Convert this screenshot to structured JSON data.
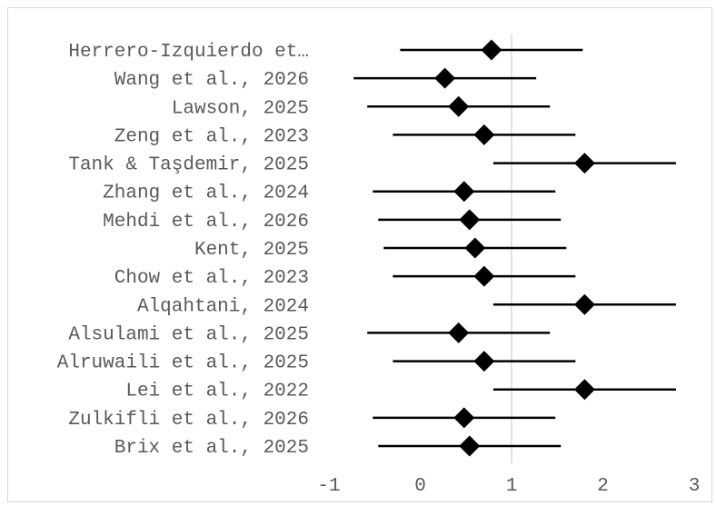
{
  "chart_data": {
    "type": "scatter",
    "subtype": "forest-plot",
    "xlim": [
      -1,
      3
    ],
    "x_ticks": [
      "-1",
      "0",
      "1",
      "2",
      "3"
    ],
    "reference_line_x": 1,
    "grid": false,
    "legend": "none",
    "colors": {
      "marker": "#000000",
      "reference_line": "#d9d9d9",
      "text": "#595959",
      "border": "#d9d9d9"
    },
    "studies": [
      {
        "label": "Herrero-Izquierdo et…",
        "estimate": 0.78,
        "lower": -0.22,
        "upper": 1.78
      },
      {
        "label": "Wang et al., 2026",
        "estimate": 0.27,
        "lower": -0.73,
        "upper": 1.27
      },
      {
        "label": "Lawson, 2025",
        "estimate": 0.42,
        "lower": -0.58,
        "upper": 1.42
      },
      {
        "label": "Zeng et al., 2023",
        "estimate": 0.7,
        "lower": -0.3,
        "upper": 1.7
      },
      {
        "label": "Tank & Taşdemir, 2025",
        "estimate": 1.8,
        "lower": 0.8,
        "upper": 2.8
      },
      {
        "label": "Zhang et al., 2024",
        "estimate": 0.48,
        "lower": -0.52,
        "upper": 1.48
      },
      {
        "label": "Mehdi et al., 2026",
        "estimate": 0.54,
        "lower": -0.46,
        "upper": 1.54
      },
      {
        "label": "Kent, 2025",
        "estimate": 0.6,
        "lower": -0.4,
        "upper": 1.6
      },
      {
        "label": "Chow et al., 2023",
        "estimate": 0.7,
        "lower": -0.3,
        "upper": 1.7
      },
      {
        "label": "Alqahtani, 2024",
        "estimate": 1.8,
        "lower": 0.8,
        "upper": 2.8
      },
      {
        "label": "Alsulami et al., 2025",
        "estimate": 0.42,
        "lower": -0.58,
        "upper": 1.42
      },
      {
        "label": "Alruwaili et al., 2025",
        "estimate": 0.7,
        "lower": -0.3,
        "upper": 1.7
      },
      {
        "label": "Lei et al., 2022",
        "estimate": 1.8,
        "lower": 0.8,
        "upper": 2.8
      },
      {
        "label": "Zulkifli et al., 2026",
        "estimate": 0.48,
        "lower": -0.52,
        "upper": 1.48
      },
      {
        "label": "Brix et al., 2025",
        "estimate": 0.54,
        "lower": -0.46,
        "upper": 1.54
      }
    ]
  }
}
